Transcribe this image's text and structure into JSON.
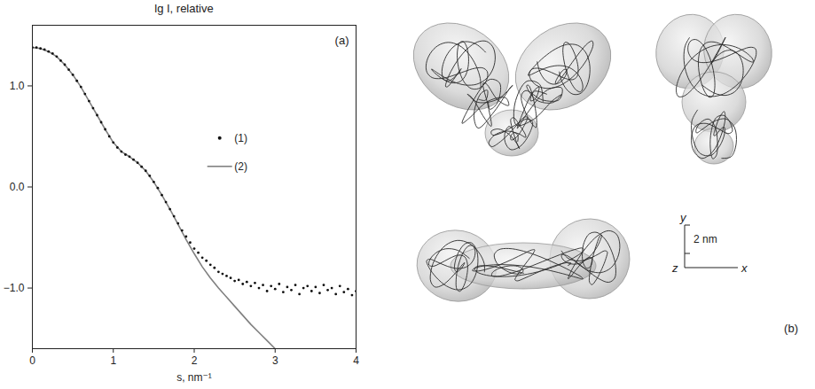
{
  "chart_data": {
    "type": "scatter",
    "title": "lg I, relative",
    "x_label": "s, nm⁻¹",
    "panel_label": "(a)",
    "xlim": [
      0,
      4
    ],
    "xticks": [
      0,
      1,
      2,
      3,
      4
    ],
    "ylim": [
      -1.6,
      1.6
    ],
    "yticks": [
      -1,
      0,
      1
    ],
    "grid": false,
    "legend": "top-right",
    "series": [
      {
        "name": "(1)",
        "type": "scatter",
        "color": "#111111",
        "marker": "circle",
        "x": [
          0,
          0.05,
          0.1,
          0.15,
          0.2,
          0.25,
          0.3,
          0.35,
          0.4,
          0.45,
          0.5,
          0.55,
          0.6,
          0.65,
          0.7,
          0.75,
          0.8,
          0.85,
          0.9,
          0.95,
          1,
          1.05,
          1.1,
          1.15,
          1.2,
          1.25,
          1.3,
          1.35,
          1.4,
          1.45,
          1.5,
          1.55,
          1.6,
          1.65,
          1.7,
          1.75,
          1.8,
          1.85,
          1.9,
          1.95,
          2,
          2.05,
          2.1,
          2.15,
          2.2,
          2.25,
          2.3,
          2.35,
          2.4,
          2.45,
          2.5,
          2.55,
          2.6,
          2.65,
          2.7,
          2.75,
          2.8,
          2.85,
          2.9,
          2.95,
          3,
          3.05,
          3.1,
          3.15,
          3.2,
          3.25,
          3.3,
          3.35,
          3.4,
          3.45,
          3.5,
          3.55,
          3.6,
          3.65,
          3.7,
          3.75,
          3.8,
          3.85,
          3.9,
          3.95,
          4
        ],
        "values": [
          1.38,
          1.38,
          1.37,
          1.36,
          1.34,
          1.32,
          1.29,
          1.25,
          1.21,
          1.16,
          1.11,
          1.05,
          0.99,
          0.92,
          0.85,
          0.78,
          0.71,
          0.64,
          0.57,
          0.5,
          0.44,
          0.39,
          0.35,
          0.32,
          0.3,
          0.27,
          0.24,
          0.2,
          0.16,
          0.11,
          0.05,
          -0.01,
          -0.08,
          -0.15,
          -0.22,
          -0.29,
          -0.36,
          -0.43,
          -0.49,
          -0.55,
          -0.61,
          -0.65,
          -0.7,
          -0.73,
          -0.77,
          -0.8,
          -0.84,
          -0.86,
          -0.88,
          -0.9,
          -0.93,
          -0.92,
          -0.96,
          -0.94,
          -0.98,
          -0.95,
          -1.0,
          -0.97,
          -1.03,
          -0.98,
          -1.01,
          -0.96,
          -1.04,
          -0.99,
          -1.02,
          -0.97,
          -1.06,
          -1.0,
          -0.98,
          -1.03,
          -0.99,
          -1.05,
          -0.97,
          -1.02,
          -1.0,
          -1.06,
          -0.98,
          -1.04,
          -1.01,
          -1.07,
          -1.03
        ]
      },
      {
        "name": "(2)",
        "type": "line",
        "color": "#808080",
        "line_style": "solid",
        "x": [
          0,
          0.1,
          0.2,
          0.3,
          0.4,
          0.5,
          0.6,
          0.7,
          0.8,
          0.9,
          1,
          1.1,
          1.2,
          1.3,
          1.4,
          1.5,
          1.6,
          1.7,
          1.8,
          1.9,
          2,
          2.1,
          2.2,
          2.3,
          2.4,
          2.5,
          2.6,
          2.7,
          2.8,
          2.9,
          3
        ],
        "values": [
          1.38,
          1.37,
          1.34,
          1.29,
          1.21,
          1.11,
          0.99,
          0.85,
          0.71,
          0.57,
          0.44,
          0.35,
          0.3,
          0.24,
          0.16,
          0.05,
          -0.08,
          -0.22,
          -0.37,
          -0.52,
          -0.66,
          -0.79,
          -0.9,
          -1.0,
          -1.09,
          -1.18,
          -1.27,
          -1.36,
          -1.44,
          -1.52,
          -1.6
        ]
      }
    ]
  },
  "panel_b": {
    "label": "(b)",
    "scale_bar": "2 nm",
    "axis_labels": [
      "y",
      "z",
      "x"
    ]
  }
}
